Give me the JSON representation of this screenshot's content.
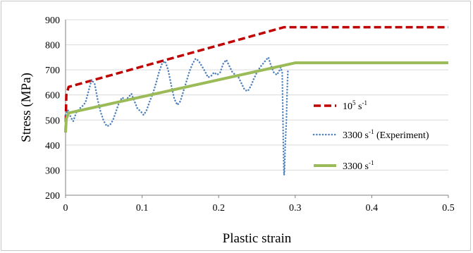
{
  "chart_data": {
    "type": "line",
    "title": "",
    "xlabel": "Plastic strain",
    "ylabel": "Stress (MPa)",
    "xlim": [
      0,
      0.5
    ],
    "ylim": [
      200,
      900
    ],
    "x_ticks": [
      "0",
      "0.1",
      "0.2",
      "0.3",
      "0.4",
      "0.5"
    ],
    "y_ticks": [
      "200",
      "300",
      "400",
      "500",
      "600",
      "700",
      "800",
      "900"
    ],
    "grid": "horizontal",
    "legend_position": "right",
    "series": [
      {
        "name": "10^5 s^-1",
        "legend": {
          "base": "10",
          "sup1": "5",
          "unit": " s",
          "sup2": "-1",
          "suffix": ""
        },
        "style": "dashed",
        "color": "#c00000",
        "points": [
          [
            0,
            450
          ],
          [
            0.001,
            600
          ],
          [
            0.004,
            632
          ],
          [
            0.285,
            870
          ],
          [
            0.5,
            870
          ]
        ]
      },
      {
        "name": "3300 s^-1 (Experiment)",
        "legend": {
          "base": "3300",
          "sup1": "",
          "unit": " s",
          "sup2": "-1",
          "suffix": "  (Experiment)"
        },
        "style": "dotted",
        "color": "#4f81bd",
        "points": [
          [
            0,
            520
          ],
          [
            0.003,
            540
          ],
          [
            0.007,
            510
          ],
          [
            0.01,
            495
          ],
          [
            0.014,
            530
          ],
          [
            0.018,
            545
          ],
          [
            0.022,
            555
          ],
          [
            0.026,
            570
          ],
          [
            0.03,
            615
          ],
          [
            0.034,
            660
          ],
          [
            0.038,
            645
          ],
          [
            0.042,
            580
          ],
          [
            0.046,
            530
          ],
          [
            0.05,
            495
          ],
          [
            0.054,
            475
          ],
          [
            0.058,
            480
          ],
          [
            0.062,
            500
          ],
          [
            0.066,
            535
          ],
          [
            0.07,
            570
          ],
          [
            0.074,
            590
          ],
          [
            0.078,
            580
          ],
          [
            0.082,
            590
          ],
          [
            0.086,
            605
          ],
          [
            0.09,
            575
          ],
          [
            0.094,
            545
          ],
          [
            0.098,
            535
          ],
          [
            0.102,
            520
          ],
          [
            0.106,
            540
          ],
          [
            0.11,
            575
          ],
          [
            0.114,
            605
          ],
          [
            0.118,
            645
          ],
          [
            0.122,
            690
          ],
          [
            0.126,
            725
          ],
          [
            0.13,
            735
          ],
          [
            0.134,
            700
          ],
          [
            0.138,
            640
          ],
          [
            0.142,
            585
          ],
          [
            0.146,
            560
          ],
          [
            0.15,
            575
          ],
          [
            0.154,
            615
          ],
          [
            0.158,
            655
          ],
          [
            0.162,
            695
          ],
          [
            0.166,
            725
          ],
          [
            0.17,
            745
          ],
          [
            0.174,
            735
          ],
          [
            0.178,
            715
          ],
          [
            0.182,
            695
          ],
          [
            0.186,
            670
          ],
          [
            0.19,
            675
          ],
          [
            0.194,
            690
          ],
          [
            0.198,
            680
          ],
          [
            0.202,
            690
          ],
          [
            0.206,
            725
          ],
          [
            0.21,
            740
          ],
          [
            0.214,
            715
          ],
          [
            0.218,
            690
          ],
          [
            0.222,
            680
          ],
          [
            0.226,
            670
          ],
          [
            0.23,
            645
          ],
          [
            0.234,
            620
          ],
          [
            0.238,
            615
          ],
          [
            0.242,
            635
          ],
          [
            0.246,
            665
          ],
          [
            0.25,
            690
          ],
          [
            0.254,
            710
          ],
          [
            0.258,
            725
          ],
          [
            0.262,
            740
          ],
          [
            0.265,
            750
          ],
          [
            0.268,
            720
          ],
          [
            0.272,
            690
          ],
          [
            0.276,
            680
          ],
          [
            0.279,
            695
          ],
          [
            0.281,
            710
          ],
          [
            0.283,
            690
          ],
          [
            0.2845,
            400
          ],
          [
            0.285,
            320
          ],
          [
            0.2855,
            280
          ],
          [
            0.286,
            300
          ],
          [
            0.287,
            400
          ],
          [
            0.2885,
            500
          ],
          [
            0.2895,
            620
          ],
          [
            0.2905,
            700
          ]
        ]
      },
      {
        "name": "3300 s^-1",
        "legend": {
          "base": "3300",
          "sup1": "",
          "unit": " s",
          "sup2": "-1",
          "suffix": ""
        },
        "style": "solid",
        "color": "#9bbb59",
        "points": [
          [
            0,
            450
          ],
          [
            0.001,
            505
          ],
          [
            0.004,
            528
          ],
          [
            0.3,
            728
          ],
          [
            0.5,
            728
          ]
        ]
      }
    ]
  }
}
